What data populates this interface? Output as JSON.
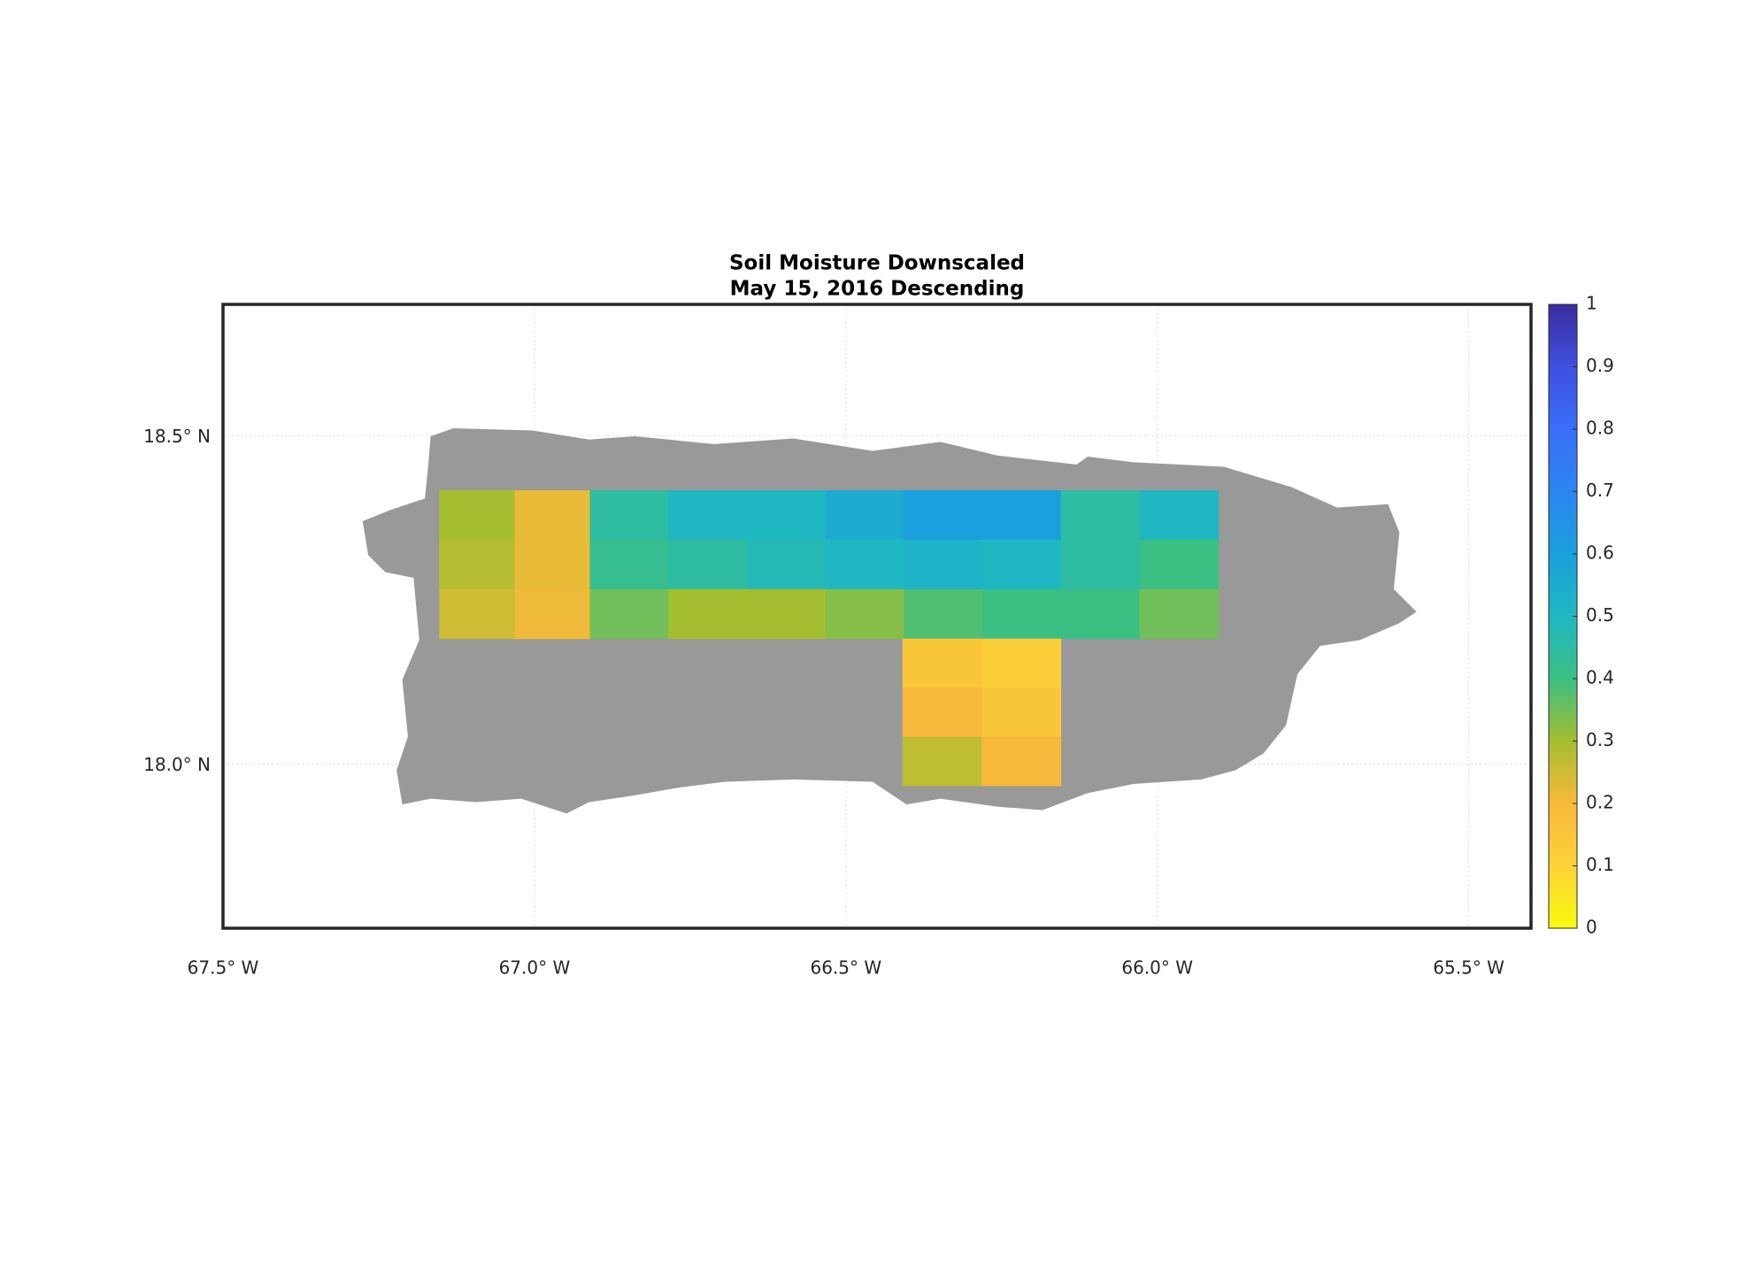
{
  "chart_data": {
    "type": "map",
    "title": [
      "Soil Moisture Downscaled",
      "May 15, 2016 Descending"
    ],
    "xlim": [
      -67.5,
      -65.4
    ],
    "ylim": [
      17.75,
      18.7
    ],
    "xticks": [
      {
        "value": -67.5,
        "label": "67.5° W"
      },
      {
        "value": -67.0,
        "label": "67.0° W"
      },
      {
        "value": -66.5,
        "label": "66.5° W"
      },
      {
        "value": -66.0,
        "label": "66.0° W"
      },
      {
        "value": -65.5,
        "label": "65.5° W"
      }
    ],
    "yticks": [
      {
        "value": 18.0,
        "label": "18.0° N"
      },
      {
        "value": 18.5,
        "label": "18.5° N"
      }
    ],
    "grid": true,
    "land_color": "#999999",
    "clim": [
      0,
      1
    ],
    "cticks": [
      0,
      0.1,
      0.2,
      0.3,
      0.4,
      0.5,
      0.6,
      0.7,
      0.8,
      0.9,
      1
    ],
    "colormap": [
      "#f9fb0e",
      "#fcd238",
      "#f7b93a",
      "#a5be30",
      "#3cbf83",
      "#1fb8c2",
      "#1aa0dc",
      "#2b86f0",
      "#3a6ef8",
      "#3f4fe0",
      "#3a2d9e"
    ],
    "patches": [
      {
        "lon": [
          -67.153,
          -66.911
        ],
        "lat": [
          18.191,
          18.417
        ],
        "values": [
          [
            0.3,
            0.22
          ],
          [
            0.28,
            0.22
          ],
          [
            0.25,
            0.21
          ]
        ]
      },
      {
        "lon": [
          -66.911,
          -66.155
        ],
        "lat": [
          18.191,
          18.417
        ],
        "values": [
          [
            0.45,
            0.5,
            0.5,
            0.55,
            0.6,
            0.6
          ],
          [
            0.42,
            0.45,
            0.48,
            0.5,
            0.52,
            0.5
          ],
          [
            0.35,
            0.3,
            0.3,
            0.33,
            0.38,
            0.4
          ]
        ]
      },
      {
        "lon": [
          -66.155,
          -65.902
        ],
        "lat": [
          18.191,
          18.417
        ],
        "values": [
          [
            0.45,
            0.5
          ],
          [
            0.45,
            0.4
          ],
          [
            0.4,
            0.35
          ]
        ]
      },
      {
        "lon": [
          -66.409,
          -66.155
        ],
        "lat": [
          17.967,
          18.191
        ],
        "values": [
          [
            0.15,
            0.12
          ],
          [
            0.2,
            0.15
          ],
          [
            0.27,
            0.2
          ]
        ]
      }
    ]
  }
}
